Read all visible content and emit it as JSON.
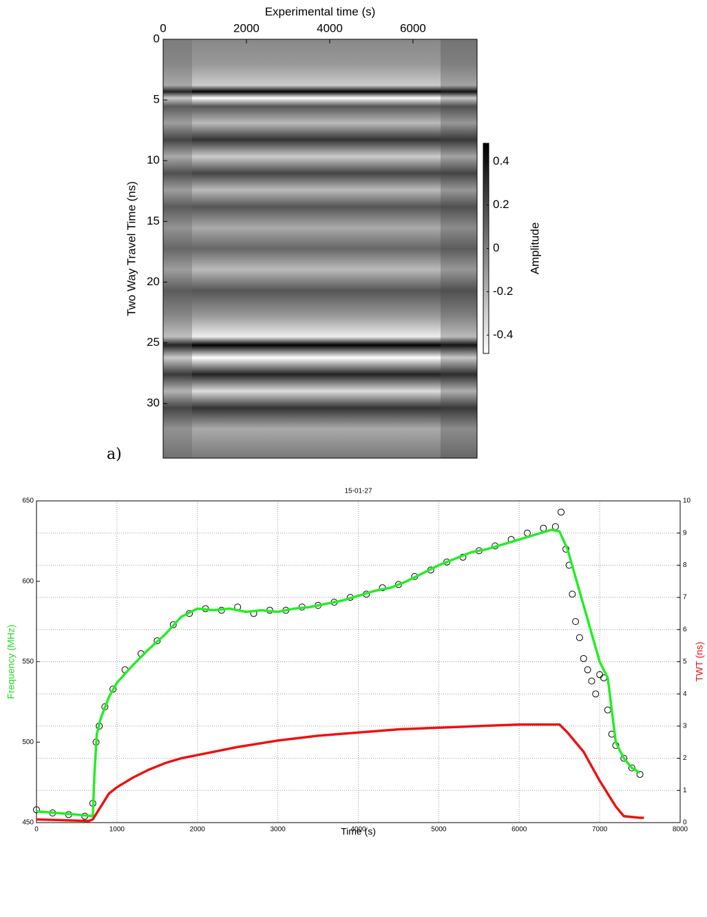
{
  "chart_data": [
    {
      "type": "image",
      "panel_label": "a)",
      "xlabel": "Experimental time (s)",
      "ylabel": "Two Way Travel Time (ns)",
      "xlim": [
        0,
        7540
      ],
      "xticks": [
        0,
        2000,
        4000,
        6000
      ],
      "ylim": [
        0,
        34.5
      ],
      "yticks": [
        0,
        5,
        10,
        15,
        20,
        25,
        30
      ],
      "y_inverted": true,
      "x_axis_top": true,
      "colorbar": {
        "label": "Amplitude",
        "clim": [
          -0.485,
          0.485
        ],
        "ticks": [
          -0.4,
          -0.2,
          0,
          0.2,
          0.4
        ],
        "colors": [
          "#ffffff",
          "#000000"
        ]
      }
    },
    {
      "type": "line",
      "title": "15-01-27",
      "xlabel": "Time (s)",
      "ylabel": "Frequency (MHz)",
      "y2label": "TWT (ns)",
      "ylabel_color": "#22dd22",
      "y2label_color": "#ee1111",
      "grid": true,
      "xlim": [
        0,
        8000
      ],
      "xticks": [
        0,
        1000,
        2000,
        3000,
        4000,
        5000,
        6000,
        7000,
        8000
      ],
      "ylim": [
        450,
        650
      ],
      "yticks": [
        450,
        500,
        550,
        600,
        650
      ],
      "y2lim": [
        0,
        10
      ],
      "y2ticks": [
        0,
        1,
        2,
        3,
        4,
        5,
        6,
        7,
        8,
        9,
        10
      ],
      "series": [
        {
          "color": "#000000",
          "mode": "markers",
          "x": [
            0,
            200,
            400,
            600,
            700,
            740,
            780,
            850,
            950,
            1100,
            1300,
            1500,
            1700,
            1900,
            2100,
            2300,
            2500,
            2700,
            2900,
            3100,
            3300,
            3500,
            3700,
            3900,
            4100,
            4300,
            4500,
            4700,
            4900,
            5100,
            5300,
            5500,
            5700,
            5900,
            6100,
            6300,
            6450,
            6520,
            6580,
            6620,
            6660,
            6700,
            6750,
            6800,
            6850,
            6900,
            6950,
            7000,
            7050,
            7100,
            7150,
            7200,
            7300,
            7400,
            7500
          ],
          "values": [
            458,
            456,
            455,
            454,
            462,
            500,
            510,
            522,
            533,
            545,
            555,
            563,
            573,
            580,
            583,
            582,
            584,
            580,
            582,
            582,
            584,
            585,
            587,
            590,
            592,
            596,
            598,
            603,
            607,
            612,
            615,
            619,
            622,
            626,
            630,
            633,
            634,
            643,
            620,
            610,
            592,
            575,
            565,
            552,
            545,
            538,
            530,
            542,
            540,
            520,
            505,
            498,
            490,
            484,
            480
          ]
        },
        {
          "color": "#22ee22",
          "mode": "lines",
          "x": [
            0,
            250,
            500,
            700,
            720,
            750,
            800,
            900,
            1000,
            1200,
            1400,
            1600,
            1800,
            2000,
            2200,
            2400,
            2600,
            2800,
            3000,
            3200,
            3400,
            3600,
            3800,
            4000,
            4200,
            4400,
            4600,
            4800,
            5000,
            5200,
            5400,
            5600,
            5800,
            6000,
            6200,
            6400,
            6500,
            6600,
            6800,
            7000,
            7100,
            7200,
            7300,
            7400,
            7500
          ],
          "values": [
            457,
            456,
            455,
            454,
            480,
            505,
            515,
            528,
            537,
            548,
            558,
            567,
            578,
            583,
            582,
            583,
            581,
            582,
            581,
            583,
            584,
            586,
            588,
            591,
            594,
            596,
            600,
            605,
            610,
            614,
            618,
            620,
            623,
            626,
            629,
            632,
            631,
            620,
            585,
            550,
            540,
            500,
            490,
            484,
            481
          ]
        },
        {
          "color": "#ee1111",
          "mode": "lines",
          "axis": "y2",
          "x": [
            0,
            650,
            700,
            800,
            900,
            1000,
            1200,
            1400,
            1600,
            1800,
            2000,
            2500,
            3000,
            3500,
            4000,
            4500,
            5000,
            5500,
            6000,
            6500,
            6600,
            6800,
            7000,
            7200,
            7300,
            7500,
            7550
          ],
          "values": [
            0.1,
            0.05,
            0.1,
            0.5,
            0.9,
            1.1,
            1.4,
            1.65,
            1.85,
            2.0,
            2.1,
            2.35,
            2.55,
            2.7,
            2.8,
            2.9,
            2.95,
            3.0,
            3.05,
            3.05,
            2.8,
            2.2,
            1.3,
            0.5,
            0.2,
            0.15,
            0.15
          ]
        }
      ]
    }
  ]
}
